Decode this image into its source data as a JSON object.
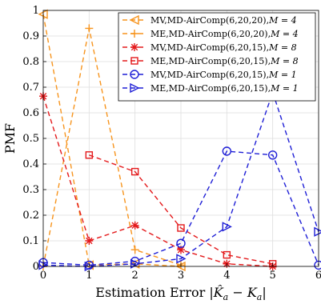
{
  "chart_data": {
    "type": "line",
    "title": "",
    "xlabel": "Estimation Error |Ŷₐ − Kₐ|",
    "xlabel_parts": [
      "Estimation Error |",
      "K̂",
      "a",
      " − ",
      "K",
      "a",
      "|"
    ],
    "ylabel": "PMF",
    "xlim": [
      0,
      6
    ],
    "ylim": [
      0,
      1
    ],
    "xticks": [
      "0",
      "1",
      "2",
      "3",
      "4",
      "5",
      "6"
    ],
    "yticks": [
      "0",
      "0.1",
      "0.2",
      "0.3",
      "0.4",
      "0.5",
      "0.6",
      "0.7",
      "0.8",
      "0.9",
      "1"
    ],
    "grid": true,
    "legend_position": "top-right",
    "x": [
      0,
      1,
      2,
      3,
      4,
      5,
      6
    ],
    "series": [
      {
        "name": "MV,MD-AirComp(6,20,20),M = 4",
        "label_main": "MV,MD-AirComp(6,20,20),",
        "label_math": "M = 4",
        "color": "#f7941d",
        "marker": "triangle-left",
        "x": [
          0,
          1,
          2,
          3
        ],
        "values": [
          0.985,
          0.005,
          0.01,
          0.0
        ]
      },
      {
        "name": "ME,MD-AirComp(6,20,20),M = 4",
        "label_main": "ME,MD-AirComp(6,20,20),",
        "label_math": "M = 4",
        "color": "#f7941d",
        "marker": "plus",
        "x": [
          0,
          1,
          2,
          3
        ],
        "values": [
          0.0,
          0.93,
          0.065,
          0.005
        ]
      },
      {
        "name": "MV,MD-AirComp(6,20,15),M = 8",
        "label_main": "MV,MD-AirComp(6,20,15),",
        "label_math": "M = 8",
        "color": "#e41a1c",
        "marker": "asterisk",
        "x": [
          0,
          1,
          2,
          3,
          4,
          5
        ],
        "values": [
          0.665,
          0.1,
          0.16,
          0.065,
          0.01,
          0.0
        ]
      },
      {
        "name": "ME,MD-AirComp(6,20,15),M = 8",
        "label_main": "ME,MD-AirComp(6,20,15),",
        "label_math": "M = 8",
        "color": "#e41a1c",
        "marker": "square",
        "x": [
          1,
          2,
          3,
          4,
          5
        ],
        "values": [
          0.435,
          0.37,
          0.15,
          0.045,
          0.01
        ]
      },
      {
        "name": "MV,MD-AirComp(6,20,15),M = 1",
        "label_main": "MV,MD-AirComp(6,20,15),",
        "label_math": "M = 1",
        "color": "#1f1fd6",
        "marker": "circle",
        "x": [
          0,
          1,
          2,
          3,
          4,
          5,
          6
        ],
        "values": [
          0.015,
          0.005,
          0.02,
          0.09,
          0.45,
          0.435,
          0.005
        ]
      },
      {
        "name": "ME,MD-AirComp(6,20,15),M = 1",
        "label_main": "ME,MD-AirComp(6,20,15),",
        "label_math": "M = 1",
        "color": "#1f1fd6",
        "marker": "triangle-right",
        "x": [
          0,
          1,
          2,
          3,
          4,
          5,
          6
        ],
        "values": [
          0.005,
          0.0,
          0.01,
          0.03,
          0.155,
          0.68,
          0.135
        ]
      }
    ]
  }
}
